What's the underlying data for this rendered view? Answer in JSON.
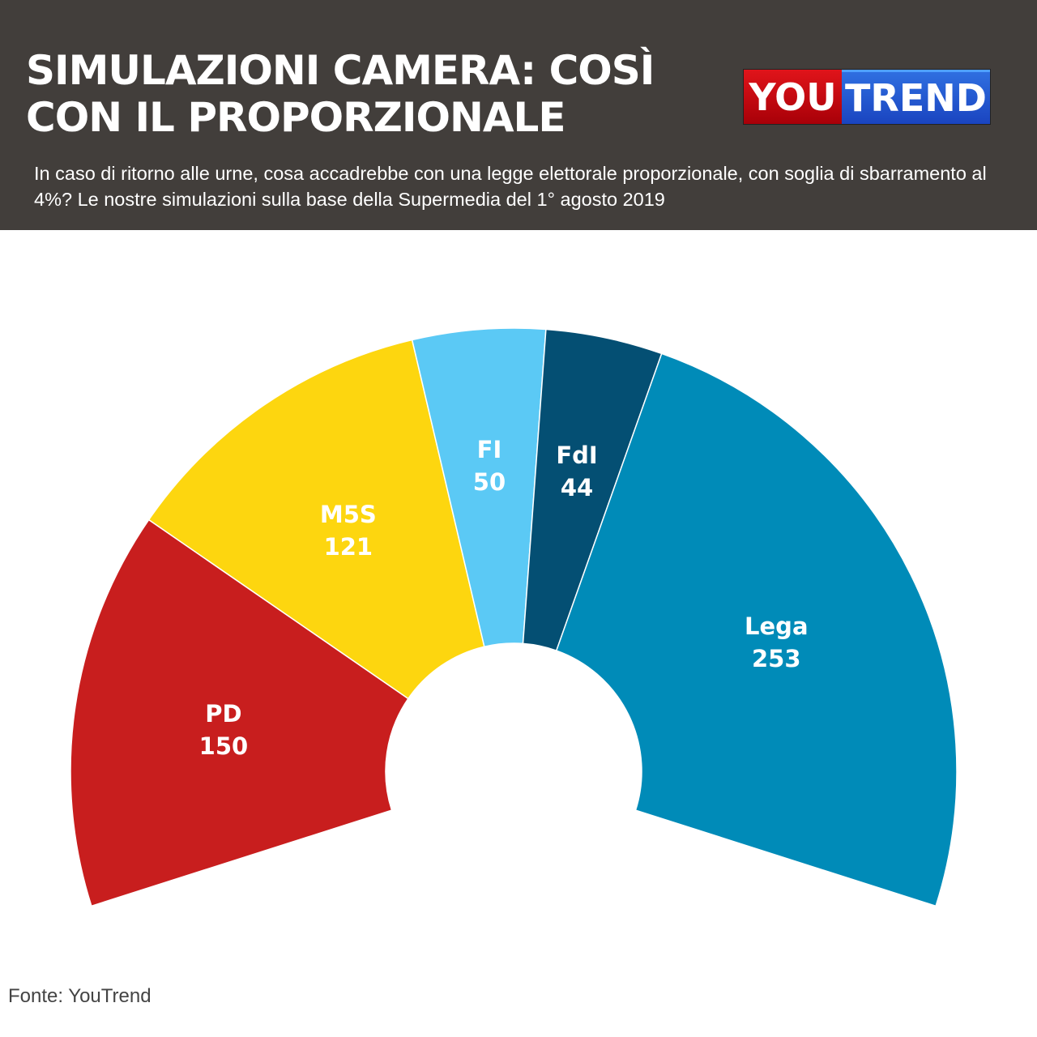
{
  "header": {
    "title": "SIMULAZIONI CAMERA: COSÌ\nCON IL PROPORZIONALE",
    "subtitle": "In caso di ritorno alle urne, cosa accadrebbe con una legge elettorale proporzionale, con soglia di sbarramento al 4%? Le nostre simulazioni sulla base della Supermedia del 1° agosto 2019",
    "logo": {
      "part1": "YOU",
      "part2": "TREND"
    }
  },
  "chart_data": {
    "type": "pie",
    "subtype": "parliament-semicircle",
    "categories": [
      "PD",
      "M5S",
      "FI",
      "FdI",
      "Lega"
    ],
    "values": [
      150,
      121,
      50,
      44,
      253
    ],
    "colors": [
      "#c81e1e",
      "#fdd60f",
      "#5bc9f5",
      "#044f73",
      "#008bb8"
    ],
    "title": "",
    "legend": "none"
  },
  "footer": {
    "source": "Fonte: YouTrend"
  }
}
